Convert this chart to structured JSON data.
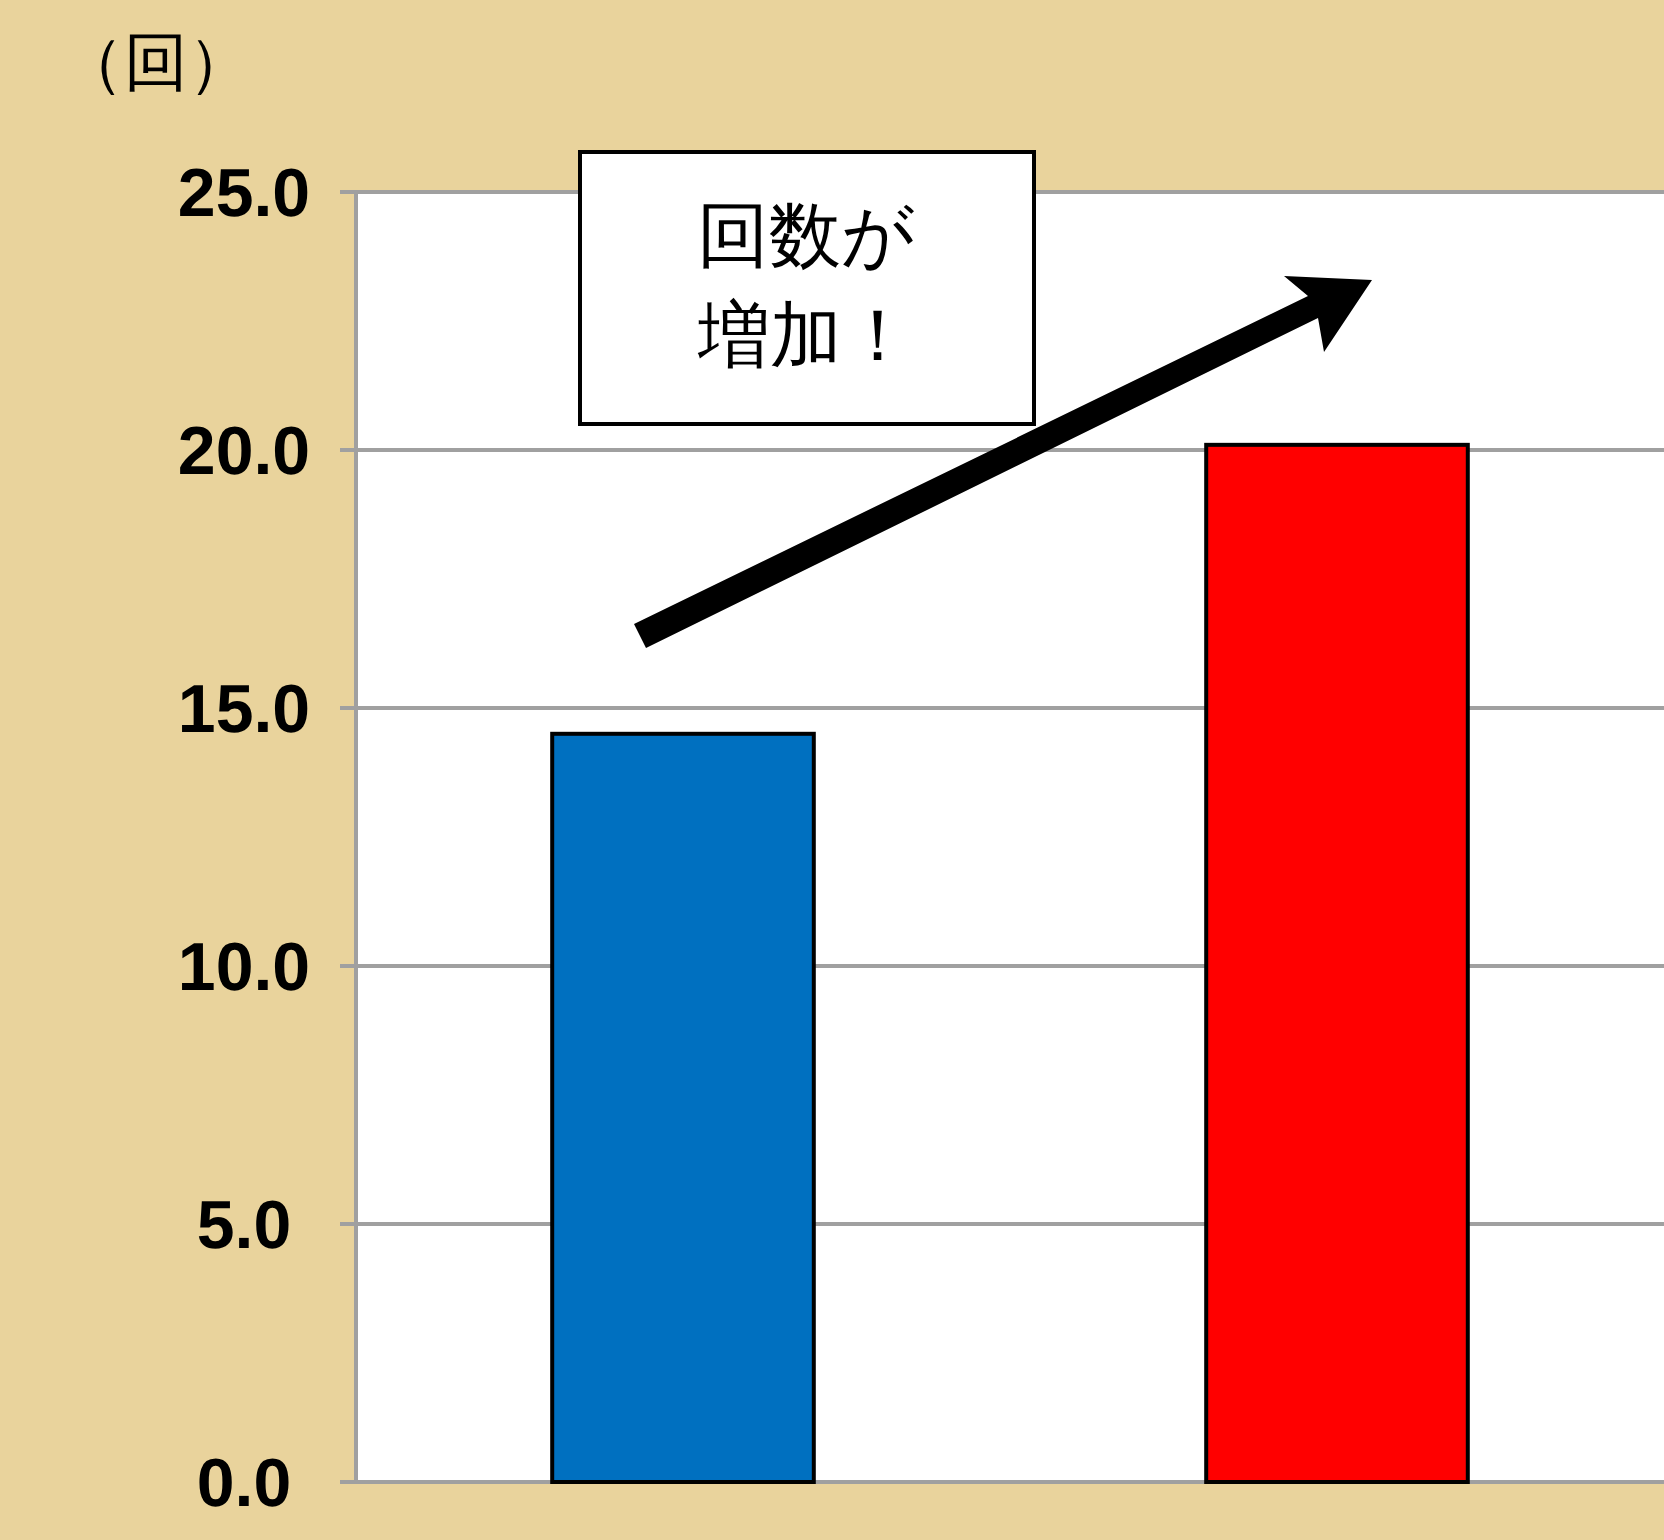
{
  "chart_data": {
    "type": "bar",
    "ylabel": "（回）",
    "categories": [
      null,
      null
    ],
    "values": [
      14.5,
      20.1
    ],
    "colors": [
      "#0070c0",
      "#ff0000"
    ],
    "ylim": [
      0,
      25
    ],
    "yticks": [
      {
        "value": 0,
        "label": "0.0"
      },
      {
        "value": 5,
        "label": "5.0"
      },
      {
        "value": 10,
        "label": "10.0"
      },
      {
        "value": 15,
        "label": "15.0"
      },
      {
        "value": 20,
        "label": "20.0"
      },
      {
        "value": 25,
        "label": "25.0"
      }
    ],
    "grid": "y",
    "annotations": [
      "回数が増加！"
    ]
  }
}
